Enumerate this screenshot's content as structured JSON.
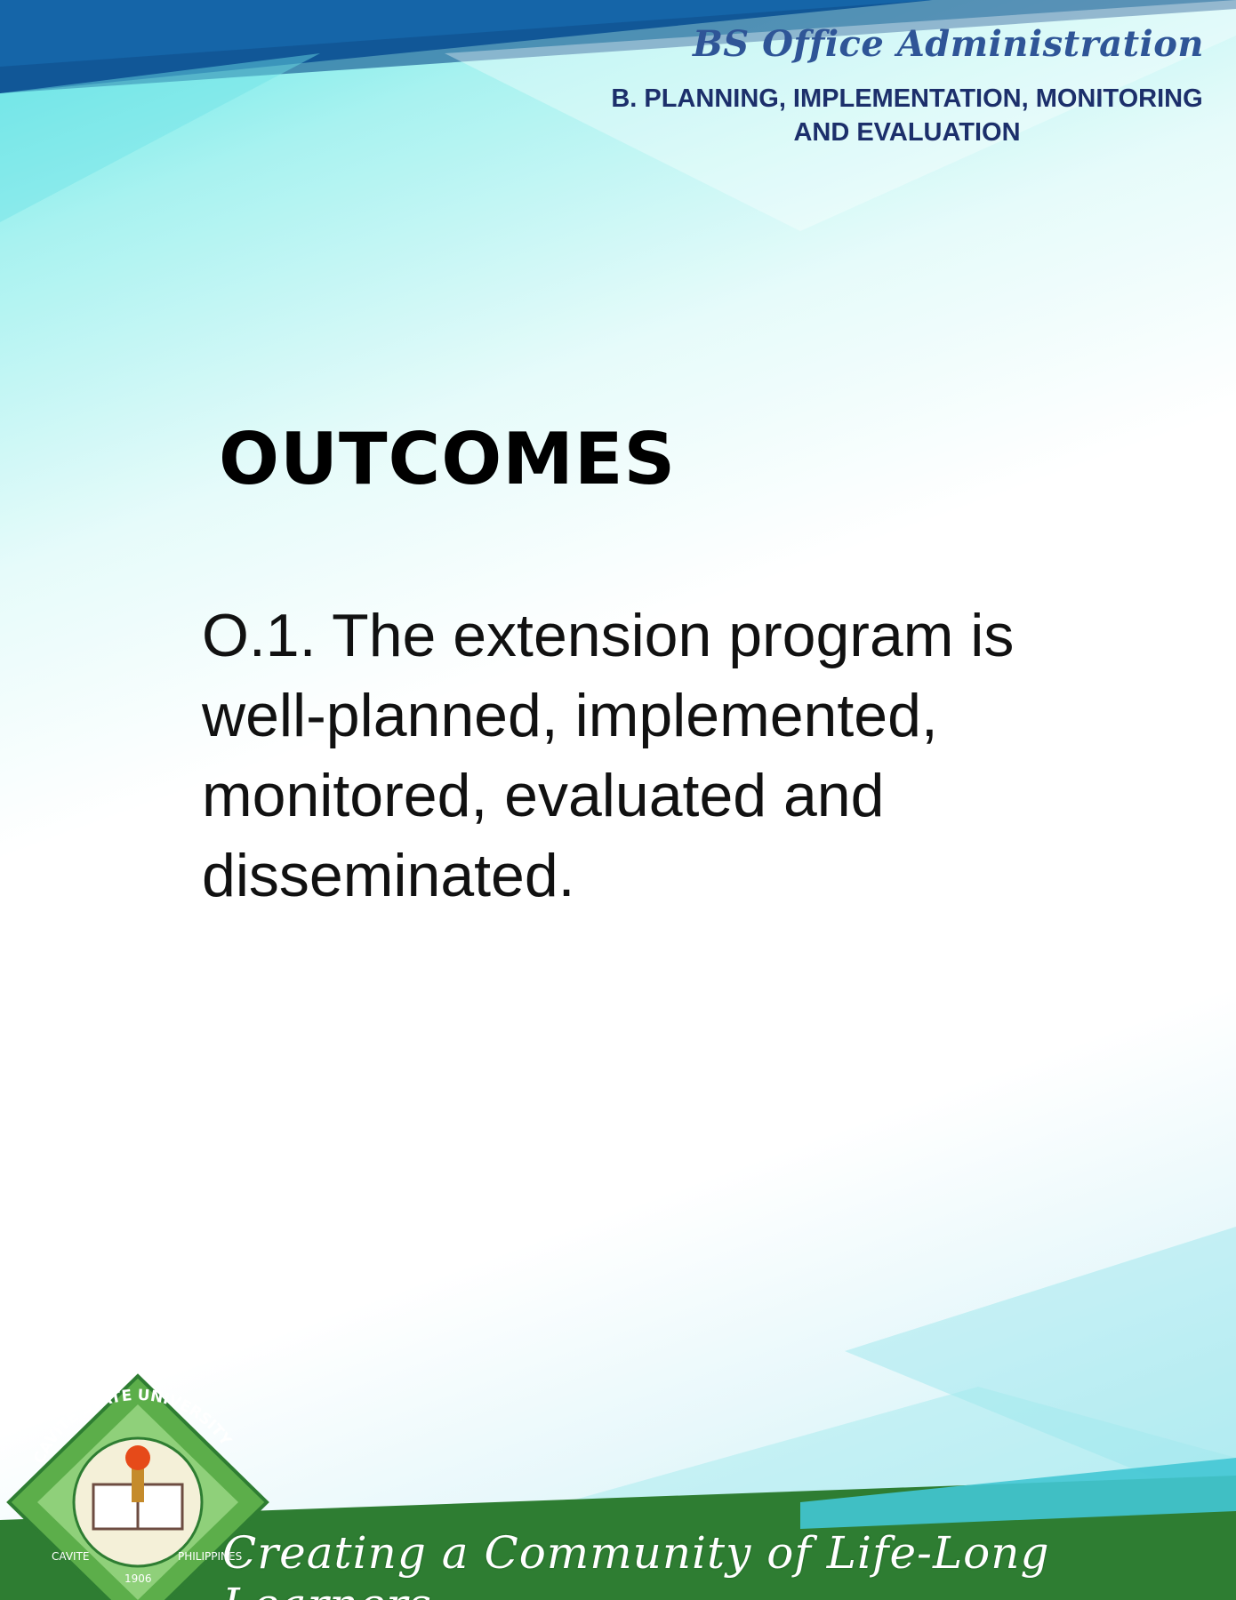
{
  "header": {
    "program": "BS Office Administration",
    "section_line1": "B. PLANNING, IMPLEMENTATION, MONITORING",
    "section_line2": "AND EVALUATION"
  },
  "main": {
    "heading": "OUTCOMES",
    "outcome_text": "O.1. The extension program is well-planned, implemented, monitored, evaluated and disseminated."
  },
  "footer": {
    "tagline": "Creating a Community of Life-Long Learners",
    "seal": {
      "top_text": "CAVITE STATE UNIVERSITY",
      "bottom_left": "CAVITE",
      "bottom_right": "PHILIPPINES",
      "year": "1906"
    }
  },
  "colors": {
    "top_bar": "#1565a8",
    "program_title": "#2f5597",
    "section_title": "#1c2f6b",
    "footer_green": "#2e7d32",
    "seal_green": "#5cae4a"
  }
}
